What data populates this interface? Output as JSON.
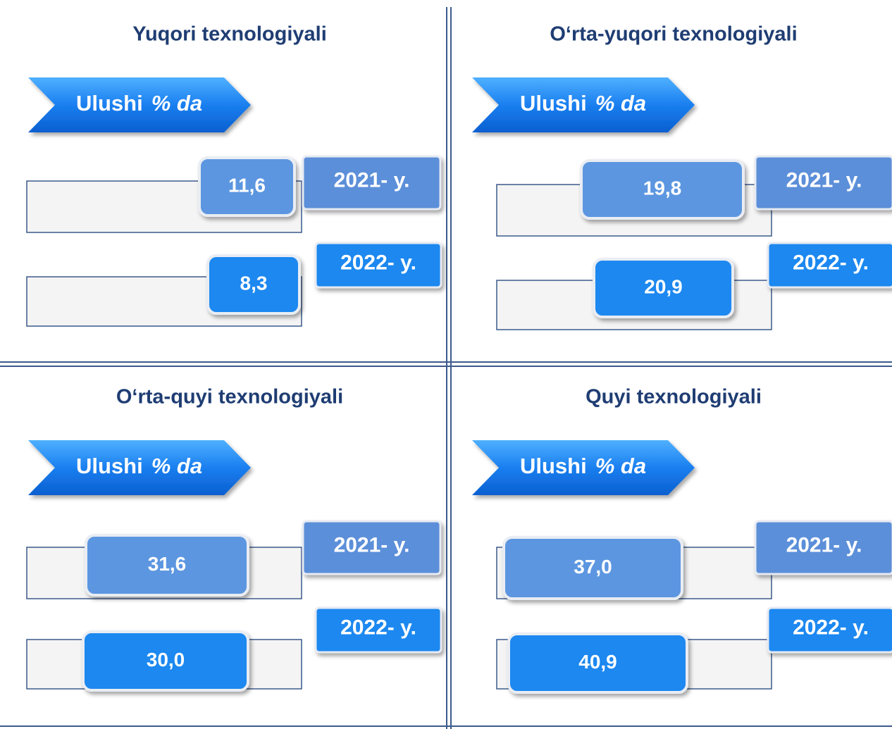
{
  "panels": [
    {
      "title": "Yuqori texnologiyali",
      "label": "Ulushi",
      "unit": "% da",
      "rows": [
        {
          "value": "11,6",
          "year": "2021- y."
        },
        {
          "value": "8,3",
          "year": "2022- y."
        }
      ]
    },
    {
      "title": "O‘rta-yuqori texnologiyali",
      "label": "Ulushi",
      "unit": "% da",
      "rows": [
        {
          "value": "19,8",
          "year": "2021- y."
        },
        {
          "value": "20,9",
          "year": "2022- y."
        }
      ]
    },
    {
      "title": "O‘rta-quyi texnologiyali",
      "label": "Ulushi",
      "unit": "% da",
      "rows": [
        {
          "value": "31,6",
          "year": "2021- y."
        },
        {
          "value": "30,0",
          "year": "2022- y."
        }
      ]
    },
    {
      "title": "Quyi texnologiyali",
      "label": "Ulushi",
      "unit": "% da",
      "rows": [
        {
          "value": "37,0",
          "year": "2021- y."
        },
        {
          "value": "40,9",
          "year": "2022- y."
        }
      ]
    }
  ]
}
